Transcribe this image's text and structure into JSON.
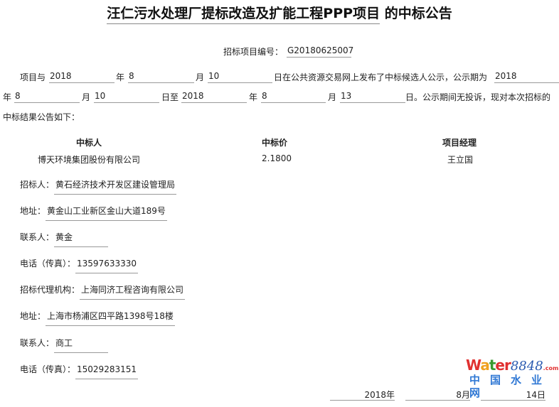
{
  "title": {
    "underlined": "汪仁污水处理厂提标改造及扩能工程PPP项目",
    "rest": " 的中标公告"
  },
  "project_no": {
    "label": "招标项目编号：",
    "value": "G20180625007"
  },
  "para": {
    "p1": "项目与",
    "y1": "2018",
    "t_year": "年",
    "m1": "8",
    "t_month": "月",
    "d1": "10",
    "t2": "日在公共资源交易网上发布了中标候选人公示，公示期为",
    "y2": "2018",
    "m2": "8",
    "d2": "10",
    "t_to": "日至",
    "y3": "2018",
    "m3": "8",
    "d3": "13",
    "t3": "日。公示期间无投诉，现对本次招标的",
    "t4": "中标结果公告如下："
  },
  "table": {
    "headers": [
      "中标人",
      "中标价",
      "项目经理"
    ],
    "row": [
      "博天环境集团股份有限公司",
      "2.1800",
      "王立国"
    ]
  },
  "fields": [
    {
      "label": "招标人：",
      "value": "黄石经济技术开发区建设管理局"
    },
    {
      "label": "地址：",
      "value": "黄金山工业新区金山大道189号"
    },
    {
      "label": "联系人：",
      "value": "黄金"
    },
    {
      "label": "电话（传真）：",
      "value": "13597633330"
    },
    {
      "label": "招标代理机构：",
      "value": "上海同济工程咨询有限公司"
    },
    {
      "label": "地址：",
      "value": "上海市杨浦区四平路1398号18楼"
    },
    {
      "label": "联系人：",
      "value": "商工"
    },
    {
      "label": "电话（传真）：",
      "value": "15029283151"
    }
  ],
  "footer_date": {
    "year": "2018年",
    "month": "8月",
    "day": "14日"
  },
  "watermark": {
    "text": "water8848.com",
    "cn": "中国水业网"
  }
}
